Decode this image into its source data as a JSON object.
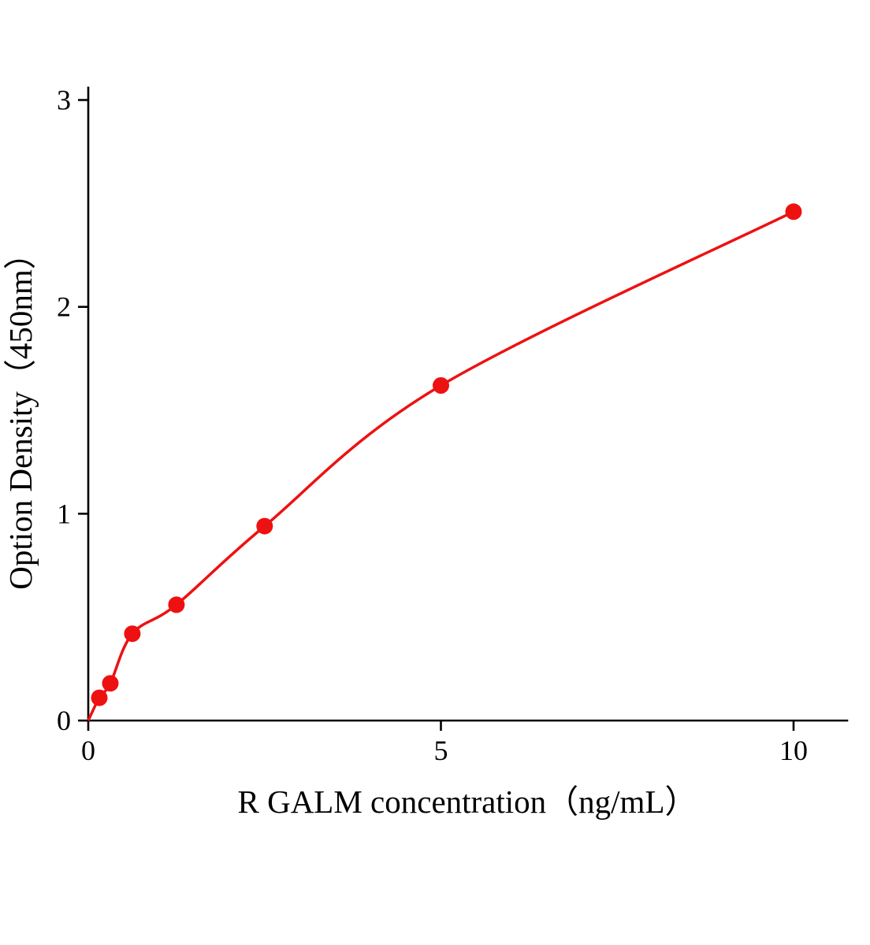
{
  "page": {
    "background": "#ffffff"
  },
  "chart_data": {
    "type": "scatter",
    "title": "",
    "xlabel": "R GALM concentration（ng/mL）",
    "ylabel": "Option Density（450nm）",
    "x": [
      0.156,
      0.3125,
      0.625,
      1.25,
      2.5,
      5,
      10
    ],
    "y": [
      0.11,
      0.18,
      0.42,
      0.56,
      0.94,
      1.62,
      2.46
    ],
    "curve_start": [
      0,
      0
    ],
    "fit_type": "smooth curve through standard points",
    "x_ticks": [
      {
        "value": 0,
        "label": "0"
      },
      {
        "value": 5,
        "label": "5"
      },
      {
        "value": 10,
        "label": "10"
      }
    ],
    "y_ticks": [
      {
        "value": 0,
        "label": "0"
      },
      {
        "value": 1,
        "label": "1"
      },
      {
        "value": 2,
        "label": "2"
      },
      {
        "value": 3,
        "label": "3"
      }
    ],
    "xlim": [
      0,
      10.76
    ],
    "ylim": [
      0,
      3.06
    ],
    "grid": false,
    "legend": false,
    "line_color": "#ee1111",
    "marker_color": "#ee1111",
    "axis_color": "#000000",
    "marker_radius": 10.5,
    "line_width": 3.5
  }
}
